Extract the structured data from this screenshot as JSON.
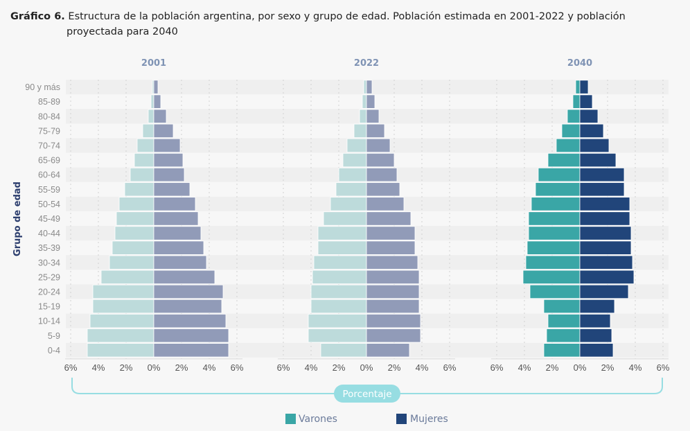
{
  "header": {
    "lead": "Gráfico 6.",
    "title_line1": "Estructura de la población argentina, por sexo y grupo de edad. Población estimada en 2001-2022 y población",
    "title_line2": "proyectada para 2040"
  },
  "colors": {
    "varones_legend": "#3aa6a6",
    "mujeres_legend": "#21457a",
    "varones_2001_2022": "#bddbdb",
    "mujeres_2001_2022": "#919bb8",
    "varones_2040": "#3aa6a6",
    "mujeres_2040": "#21457a",
    "panel_title": "#7f93b4",
    "pill": "#97dde2"
  },
  "chart_data": {
    "type": "bar",
    "subtype": "population-pyramid",
    "title": "Estructura de la población argentina, por sexo y grupo de edad. Población estimada en 2001-2022 y población proyectada para 2040",
    "ylabel": "Grupo de edad",
    "xlabel": "Porcentaje",
    "x_ticks": [
      "6%",
      "4%",
      "2%",
      "0%",
      "2%",
      "4%",
      "6%"
    ],
    "xlim": [
      -6,
      6
    ],
    "grid": true,
    "legend": {
      "position": "bottom",
      "entries": [
        "Varones",
        "Mujeres"
      ]
    },
    "categories": [
      "90 y más",
      "85-89",
      "80-84",
      "75-79",
      "70-74",
      "65-69",
      "60-64",
      "55-59",
      "50-54",
      "45-49",
      "40-44",
      "35-39",
      "30-34",
      "25-29",
      "20-24",
      "15-19",
      "10-14",
      "5-9",
      "0-4"
    ],
    "panels": [
      {
        "year": "2001",
        "series": [
          {
            "name": "Varones",
            "values": [
              0.1,
              0.2,
              0.4,
              0.8,
              1.2,
              1.4,
              1.7,
              2.1,
              2.5,
              2.7,
              2.8,
              3.0,
              3.2,
              3.8,
              4.4,
              4.4,
              4.6,
              4.8,
              4.8
            ]
          },
          {
            "name": "Mujeres",
            "values": [
              0.3,
              0.5,
              0.9,
              1.4,
              1.9,
              2.1,
              2.2,
              2.6,
              3.0,
              3.2,
              3.4,
              3.6,
              3.8,
              4.4,
              5.0,
              4.9,
              5.2,
              5.4,
              5.4
            ]
          }
        ]
      },
      {
        "year": "2022",
        "series": [
          {
            "name": "Varones",
            "values": [
              0.2,
              0.3,
              0.5,
              0.9,
              1.4,
              1.7,
              2.0,
              2.2,
              2.6,
              3.1,
              3.5,
              3.5,
              3.8,
              3.9,
              4.0,
              4.0,
              4.2,
              4.2,
              3.3
            ]
          },
          {
            "name": "Mujeres",
            "values": [
              0.4,
              0.6,
              0.9,
              1.3,
              1.7,
              2.0,
              2.2,
              2.4,
              2.7,
              3.2,
              3.5,
              3.5,
              3.7,
              3.8,
              3.8,
              3.8,
              3.9,
              3.9,
              3.1
            ]
          }
        ]
      },
      {
        "year": "2040",
        "series": [
          {
            "name": "Varones",
            "values": [
              0.3,
              0.5,
              0.9,
              1.3,
              1.7,
              2.3,
              3.0,
              3.2,
              3.5,
              3.7,
              3.7,
              3.8,
              3.9,
              4.1,
              3.6,
              2.6,
              2.3,
              2.4,
              2.6
            ]
          },
          {
            "name": "Mujeres",
            "values": [
              0.6,
              0.9,
              1.3,
              1.7,
              2.1,
              2.6,
              3.2,
              3.2,
              3.6,
              3.6,
              3.7,
              3.7,
              3.8,
              3.9,
              3.5,
              2.5,
              2.2,
              2.3,
              2.4
            ]
          }
        ]
      }
    ]
  },
  "legend": {
    "varones": "Varones",
    "mujeres": "Mujeres"
  }
}
